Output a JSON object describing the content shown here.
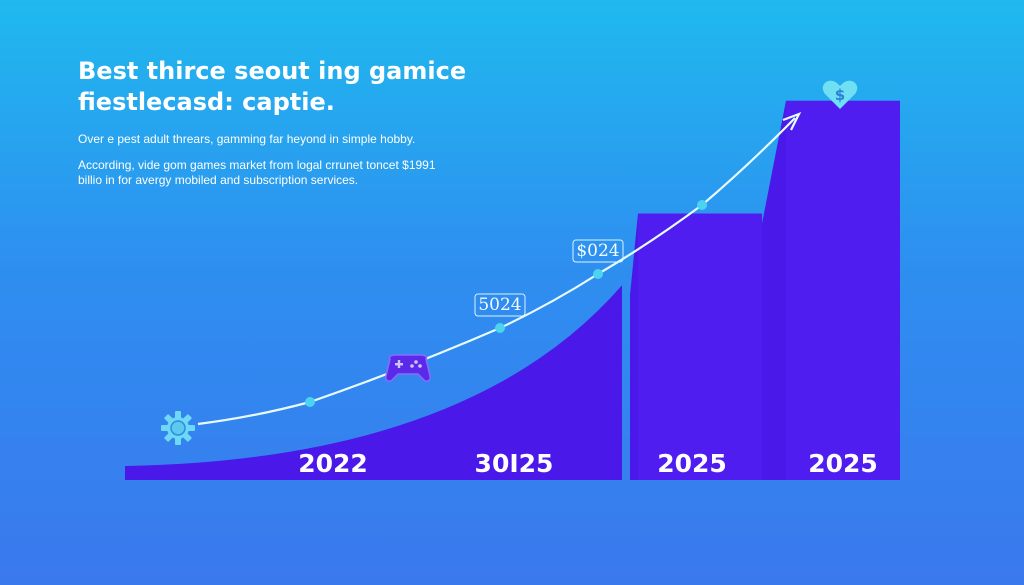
{
  "header": {
    "headline": "Best thirce seout ing gamice fiestlecasd: captie.",
    "intro": "Over e pest adult threars, gamming far heyond in simple hobby.",
    "body": "According, vide gom games market from logal crrunet toncet $1991 billio in for avergy mobiled and subscription services."
  },
  "chart_data": {
    "type": "bar",
    "title": "",
    "xlabel": "",
    "ylabel": "",
    "categories": [
      "2022",
      "30I25",
      "2025",
      "2025"
    ],
    "values": [
      null,
      38,
      52,
      74
    ],
    "first_category_shape": "area",
    "trend_line": {
      "points": [
        0,
        10,
        22,
        34,
        46,
        60
      ],
      "point_labels": [
        null,
        null,
        "5024",
        "$024",
        null,
        null
      ],
      "arrow_end": true
    },
    "ylim": [
      0,
      80
    ],
    "grid": false,
    "legend": "none"
  },
  "icons": {
    "start": "gear-icon",
    "mid": "gamepad-icon",
    "end": "heart-dollar-icon",
    "end_symbol": "$"
  },
  "colors": {
    "bar": "#4a18e8",
    "bar_edge": "#5c28ff",
    "trend_line": "#e6fbff",
    "marker": "#4cd3f0",
    "axis_label": "#ffffff"
  }
}
